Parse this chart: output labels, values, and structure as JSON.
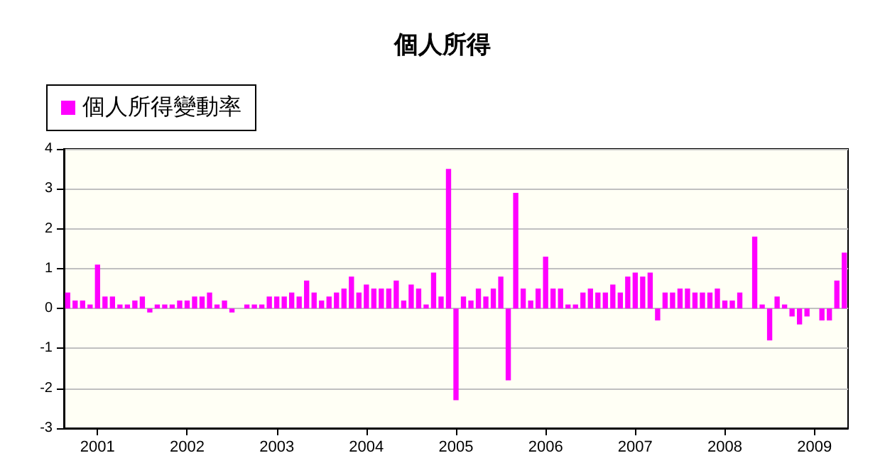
{
  "chart_data": {
    "type": "bar",
    "title": "個人所得",
    "categories": [
      null,
      null,
      null,
      null,
      "2001",
      null,
      null,
      null,
      null,
      null,
      null,
      null,
      null,
      null,
      null,
      null,
      "2002",
      null,
      null,
      null,
      null,
      null,
      null,
      null,
      null,
      null,
      null,
      null,
      "2003",
      null,
      null,
      null,
      null,
      null,
      null,
      null,
      null,
      null,
      null,
      null,
      "2004",
      null,
      null,
      null,
      null,
      null,
      null,
      null,
      null,
      null,
      null,
      null,
      "2005",
      null,
      null,
      null,
      null,
      null,
      null,
      null,
      null,
      null,
      null,
      null,
      "2006",
      null,
      null,
      null,
      null,
      null,
      null,
      null,
      null,
      null,
      null,
      null,
      "2007",
      null,
      null,
      null,
      null,
      null,
      null,
      null,
      null,
      null,
      null,
      null,
      "2008",
      null,
      null,
      null,
      null,
      null,
      null,
      null,
      null,
      null,
      null,
      null,
      "2009",
      null,
      null,
      null,
      null
    ],
    "series": [
      {
        "name": "個人所得變動率",
        "color": "#ff00ff",
        "values": [
          0.4,
          0.2,
          0.2,
          0.1,
          1.1,
          0.3,
          0.3,
          0.1,
          0.1,
          0.2,
          0.3,
          -0.1,
          0.1,
          0.1,
          0.1,
          0.2,
          0.2,
          0.3,
          0.3,
          0.4,
          0.1,
          0.2,
          -0.1,
          0,
          0.1,
          0.1,
          0.1,
          0.3,
          0.3,
          0.3,
          0.4,
          0.3,
          0.7,
          0.4,
          0.2,
          0.3,
          0.4,
          0.5,
          0.8,
          0.4,
          0.6,
          0.5,
          0.5,
          0.5,
          0.7,
          0.2,
          0.6,
          0.5,
          0.1,
          0.9,
          0.3,
          3.5,
          -2.3,
          0.3,
          0.2,
          0.5,
          0.3,
          0.5,
          0.8,
          -1.8,
          2.9,
          0.5,
          0.2,
          0.5,
          1.3,
          0.5,
          0.5,
          0.1,
          0.1,
          0.4,
          0.5,
          0.4,
          0.4,
          0.6,
          0.4,
          0.8,
          0.9,
          0.8,
          0.9,
          -0.3,
          0.4,
          0.4,
          0.5,
          0.5,
          0.4,
          0.4,
          0.4,
          0.5,
          0.2,
          0.2,
          0.4,
          0,
          1.8,
          0.1,
          -0.8,
          0.3,
          0.1,
          -0.2,
          -0.4,
          -0.2,
          0,
          -0.3,
          -0.3,
          0.7,
          1.4
        ]
      }
    ],
    "ylim": [
      -3,
      4
    ],
    "yticks": [
      -3,
      -2,
      -1,
      0,
      1,
      2,
      3,
      4
    ],
    "grid": "y",
    "legend": "top left"
  }
}
